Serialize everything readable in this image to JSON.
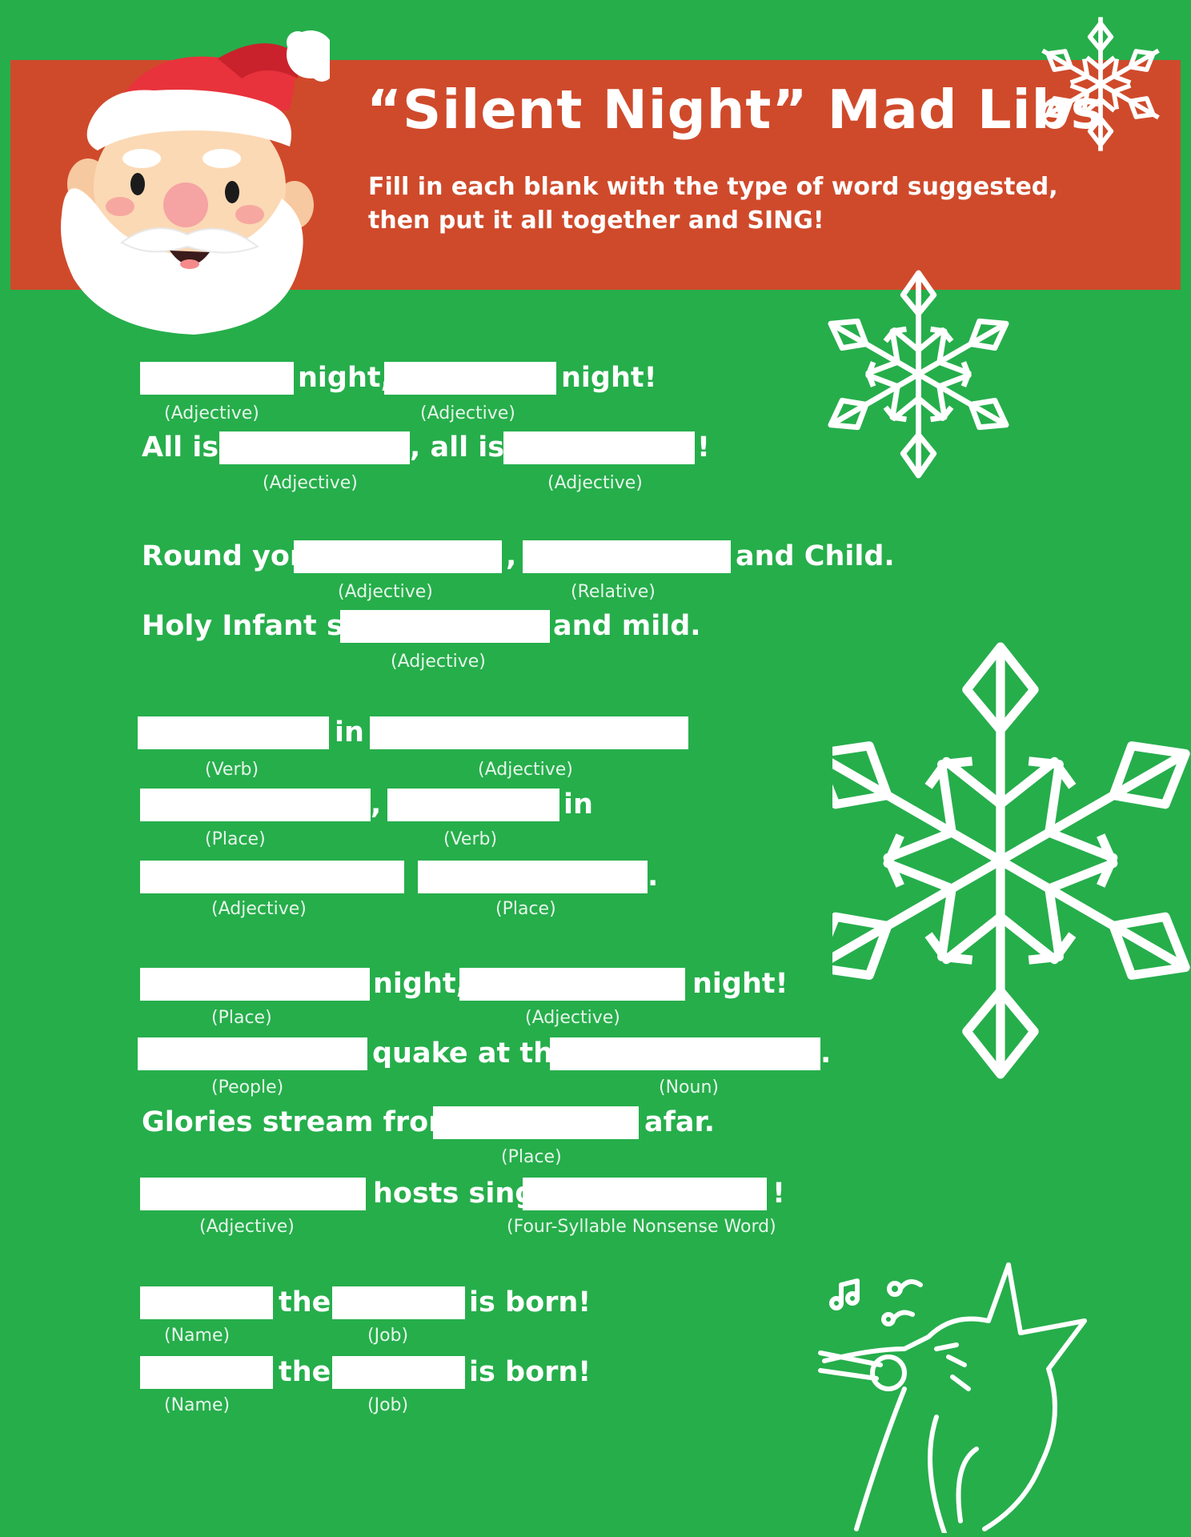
{
  "header": {
    "title": "“Silent Night” Mad Libs",
    "subtitle_line1": "Fill in each blank with the type of word suggested,",
    "subtitle_line2": "then put it all together and SING!"
  },
  "colors": {
    "background": "#26ae4b",
    "banner": "#cf4a2b",
    "blank": "#ffffff"
  },
  "icons": [
    "santa-icon",
    "snowflake-icon",
    "singing-cat-icon",
    "music-notes-icon"
  ],
  "lyrics": {
    "w_night_comma": "night,",
    "w_night_excl": "night!",
    "w_all_is": "All is",
    "w_comma_all_is": ", all is",
    "w_excl": "!",
    "w_round_yon": "Round yon",
    "w_comma": ",",
    "w_and_child": "and Child.",
    "w_holy_infant": "Holy Infant so",
    "w_and_mild": "and mild.",
    "w_in": "in",
    "w_period": ".",
    "w_quake": "quake at the",
    "w_glories": "Glories stream from",
    "w_afar": "afar.",
    "w_hosts_sing": "hosts sing",
    "w_the": "the",
    "w_is_born": "is born!"
  },
  "hints": {
    "adjective": "(Adjective)",
    "relative": "(Relative)",
    "verb": "(Verb)",
    "place": "(Place)",
    "people": "(People)",
    "noun": "(Noun)",
    "nonsense": "(Four-Syllable Nonsense Word)",
    "name": "(Name)",
    "job": "(Job)"
  }
}
